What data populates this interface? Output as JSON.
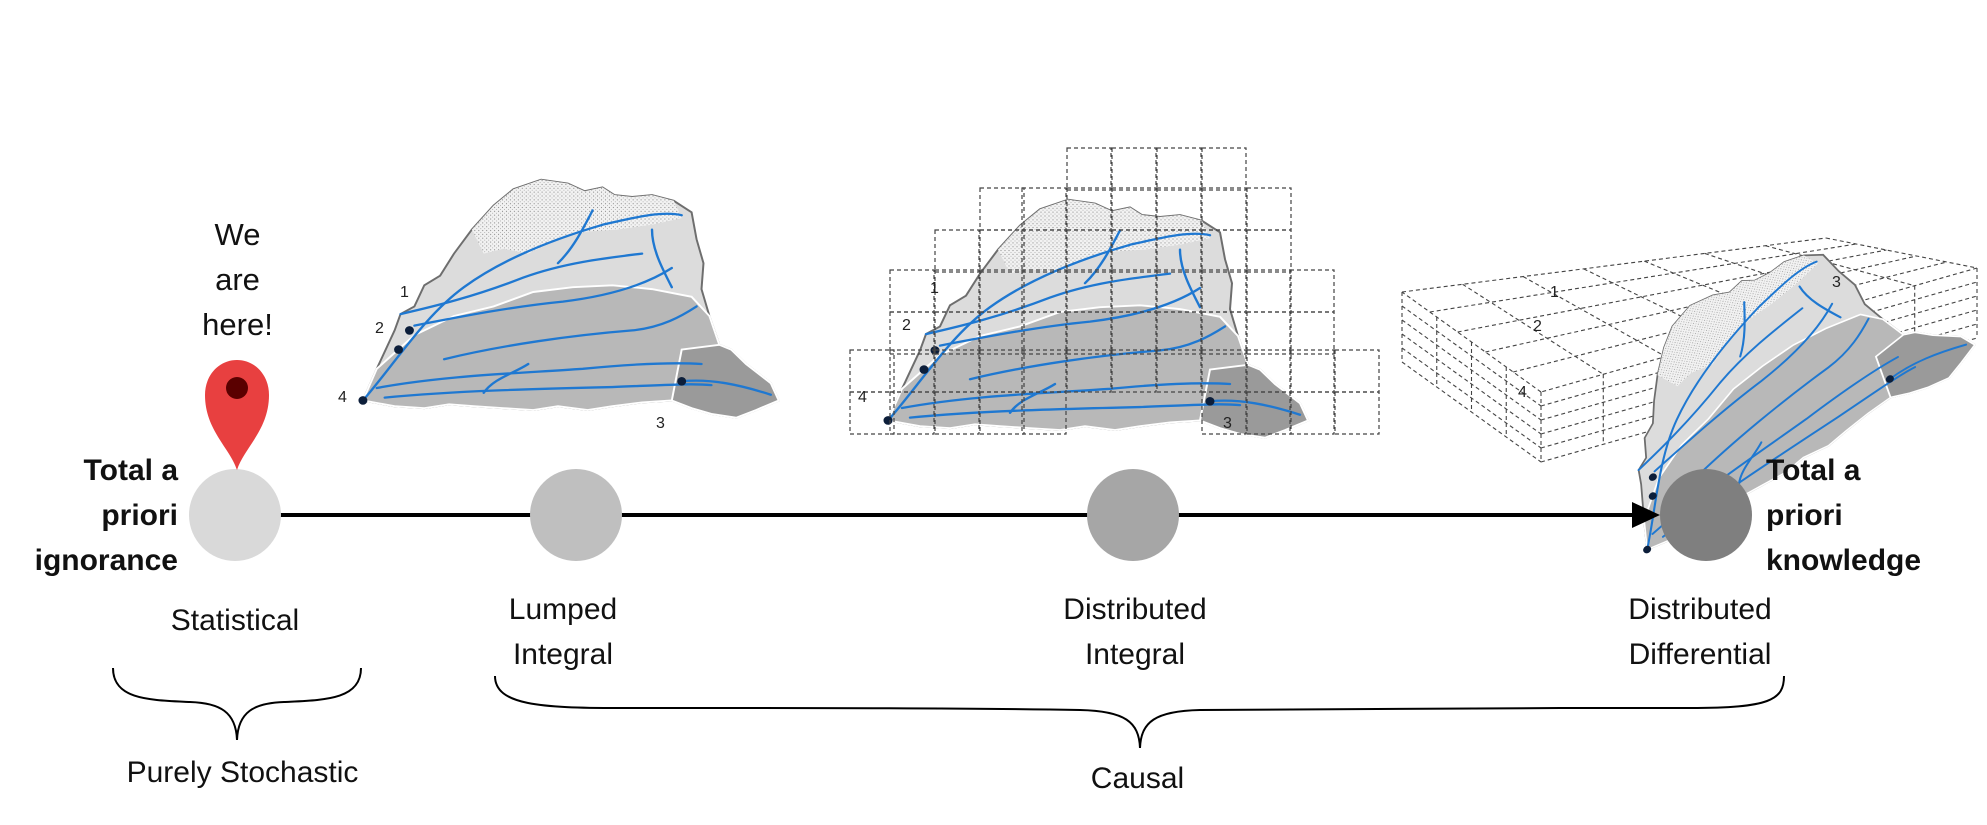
{
  "marker": {
    "text": "We\nare\nhere!",
    "pin_color": "#e84040",
    "pin_icon": "map-pin-icon"
  },
  "endpoints": {
    "left": "Total a\npriori\nignorance",
    "right": "Total a\npriori\nknowledge"
  },
  "stages": [
    {
      "label": "Statistical",
      "color": "#d9d9d9"
    },
    {
      "label": "Lumped\nIntegral",
      "color": "#bfbfbf"
    },
    {
      "label": "Distributed\nIntegral",
      "color": "#a6a6a6"
    },
    {
      "label": "Distributed\nDifferential",
      "color": "#7f7f7f"
    }
  ],
  "groups": [
    {
      "label": "Purely Stochastic"
    },
    {
      "label": "Causal"
    }
  ],
  "watershed": {
    "outlets": [
      "1",
      "2",
      "3",
      "4"
    ],
    "river_color": "#1f78d1",
    "fill_colors": [
      "#e6e6e6",
      "#d0d0d0",
      "#b3b3b3",
      "#9a9a9a"
    ]
  }
}
